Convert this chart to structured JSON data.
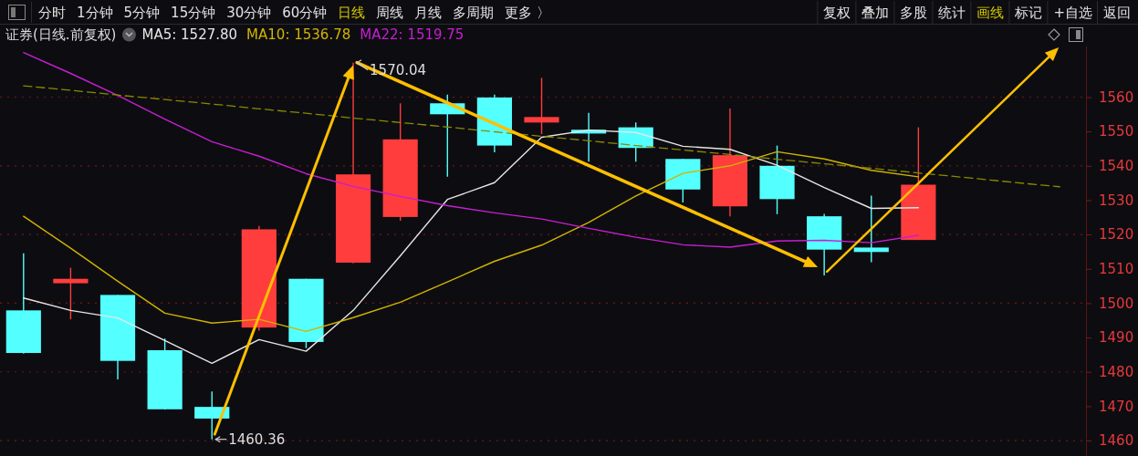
{
  "chart_data": {
    "type": "candlestick",
    "title": "证券(日线.前复权)",
    "categories": [
      null,
      null,
      null,
      null,
      null,
      null,
      null,
      null,
      null,
      null,
      null,
      null,
      null,
      null,
      null,
      null,
      null,
      null,
      null,
      null,
      null,
      null,
      null
    ],
    "ohlc": [
      [
        1497.9,
        1514.5,
        1485.3,
        1485.5
      ],
      [
        1505.8,
        1510.3,
        1495.3,
        1507.1
      ],
      [
        1502.4,
        1502.4,
        1477.8,
        1483.2
      ],
      [
        1486.3,
        1489.7,
        1469.0,
        1469.1
      ],
      [
        1469.8,
        1474.3,
        1460.36,
        1466.4
      ],
      [
        1492.9,
        1522.5,
        1492.0,
        1521.5
      ],
      [
        1507.1,
        1507.1,
        1486.9,
        1488.7
      ],
      [
        1511.8,
        1570.04,
        1511.6,
        1537.5
      ],
      [
        1525.1,
        1558.2,
        1524.0,
        1547.7
      ],
      [
        1558.2,
        1560.7,
        1536.8,
        1555.0
      ],
      [
        1559.9,
        1560.7,
        1543.9,
        1545.9
      ],
      [
        1552.6,
        1565.6,
        1549.2,
        1554.2
      ],
      [
        1550.5,
        1555.4,
        1541.2,
        1549.4
      ],
      [
        1551.2,
        1552.6,
        1541.2,
        1545.2
      ],
      [
        1542.0,
        1542.0,
        1529.3,
        1533.1
      ],
      [
        1528.2,
        1556.7,
        1525.3,
        1543.1
      ],
      [
        1540.0,
        1545.9,
        1525.9,
        1530.3
      ],
      [
        1525.3,
        1526.0,
        1508.1,
        1515.6
      ],
      [
        1516.2,
        1531.3,
        1511.9,
        1514.9
      ],
      [
        1518.4,
        1551.2,
        1518.4,
        1534.5
      ],
      null,
      null,
      null
    ],
    "colors": [
      "#54ffff",
      "#ff3d3d",
      "#54ffff",
      "#54ffff",
      "#54ffff",
      "#ff3d3d",
      "#54ffff",
      "#ff3d3d",
      "#ff3d3d",
      "#54ffff",
      "#54ffff",
      "#ff3d3d",
      "#54ffff",
      "#54ffff",
      "#54ffff",
      "#ff3d3d",
      "#54ffff",
      "#54ffff",
      "#54ffff",
      "#ff3d3d",
      null,
      null,
      null
    ],
    "series": [
      {
        "name": "MA5: 1527.80",
        "type": "line",
        "color": "#e6e6e6",
        "values": [
          1501.5,
          1497.9,
          1495.7,
          1489.1,
          1482.5,
          1489.4,
          1486.0,
          1497.9,
          1513.8,
          1530.2,
          1535.1,
          1548.3,
          1550.4,
          1549.7,
          1545.7,
          1544.8,
          1540.2,
          1533.7,
          1527.6,
          1527.8,
          null,
          null,
          null
        ]
      },
      {
        "name": "MA10: 1536.78",
        "type": "line",
        "color": "#d2b400",
        "values": [
          1525.3,
          1516.0,
          1506.4,
          1497.1,
          1494.2,
          1495.3,
          1491.8,
          1495.8,
          1500.3,
          1506.2,
          1512.2,
          1516.9,
          1523.5,
          1531.2,
          1537.8,
          1540.0,
          1544.1,
          1542.0,
          1538.7,
          1536.78,
          null,
          null,
          null
        ]
      },
      {
        "name": "MA22: 1519.75",
        "type": "line",
        "color": "#c81ed2",
        "values": [
          1573.0,
          1566.9,
          1560.5,
          1553.6,
          1547.0,
          1542.8,
          1537.7,
          1534.0,
          1531.1,
          1528.4,
          1526.3,
          1524.5,
          1521.8,
          1519.2,
          1517.0,
          1516.3,
          1518.1,
          1518.3,
          1517.6,
          1519.75,
          null,
          null,
          null
        ]
      },
      {
        "type": "line",
        "color": "#8a8a00",
        "line_style": "dashed",
        "values": [
          1563.3,
          1562.0,
          1560.6,
          1559.3,
          1558.0,
          1556.6,
          1555.3,
          1553.9,
          1552.6,
          1551.3,
          1549.9,
          1548.6,
          1547.3,
          1545.9,
          1544.6,
          1543.3,
          1541.9,
          1540.6,
          1539.3,
          1537.9,
          1536.6,
          1535.2,
          1533.9
        ]
      }
    ],
    "ylim": [
      1455.5,
      1575
    ],
    "yticks": [
      1460,
      1470,
      1480,
      1490,
      1500,
      1510,
      1520,
      1530,
      1540,
      1550,
      1560
    ],
    "grid": "y",
    "legend": "top left",
    "tick_labels": "y",
    "annotations": [
      "分时",
      "1分钟",
      "5分钟",
      "15分钟",
      "30分钟",
      "60分钟",
      "日线",
      "周线",
      "月线",
      "多周期",
      "更多 〉",
      "复权",
      "叠加",
      "多股",
      "统计",
      "画线",
      "标记",
      "+自选",
      "返回",
      "1570.04",
      "1460.36"
    ]
  }
}
